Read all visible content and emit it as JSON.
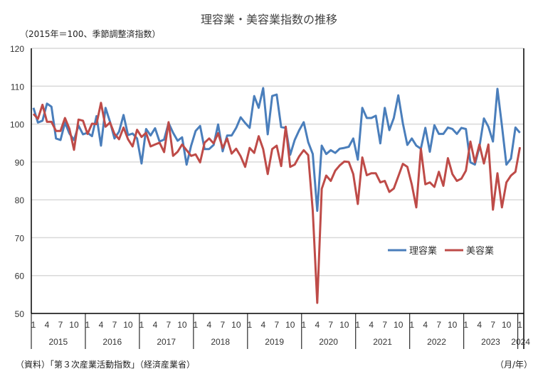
{
  "title": "理容業・美容業指数の推移",
  "subtitle": "（2015年＝100、季節調整済指数）",
  "source": "（資料）「第３次産業活動指数」（経済産業省）",
  "unit_label": "（月/年）",
  "chart_data": {
    "type": "line",
    "title": "理容業・美容業指数の推移",
    "ylim": [
      50,
      120
    ],
    "yticks": [
      50,
      60,
      70,
      80,
      90,
      100,
      110,
      120
    ],
    "grid": true,
    "legend_position": "center-right",
    "start": "2015-01",
    "end": "2024-01",
    "month_ticks": [
      "1",
      "4",
      "7",
      "10"
    ],
    "years": [
      "2015",
      "2016",
      "2017",
      "2018",
      "2019",
      "2020",
      "2021",
      "2022",
      "2023",
      "2024"
    ],
    "series": [
      {
        "name": "理容業",
        "color": "#4a7ebb",
        "values": [
          104.3,
          100.4,
          100.9,
          105.4,
          104.6,
          96.2,
          95.8,
          100.4,
          97.5,
          95.8,
          99.6,
          97.3,
          97.7,
          96.8,
          102.1,
          94.3,
          104.3,
          100.6,
          96.2,
          98.0,
          102.4,
          97.1,
          97.5,
          96.2,
          89.6,
          98.7,
          97.0,
          98.9,
          95.4,
          95.9,
          100.3,
          97.7,
          95.6,
          96.5,
          89.3,
          94.3,
          98.2,
          99.5,
          93.4,
          93.4,
          94.5,
          99.9,
          92.8,
          97.0,
          97.0,
          99.0,
          101.8,
          100.3,
          99.0,
          107.4,
          104.3,
          109.5,
          97.3,
          107.4,
          107.8,
          99.2,
          99.0,
          91.9,
          95.8,
          98.4,
          100.5,
          95.2,
          92.1,
          77.1,
          94.3,
          92.1,
          93.1,
          92.4,
          93.5,
          93.7,
          94.0,
          96.2,
          90.6,
          104.3,
          101.6,
          101.6,
          102.2,
          94.9,
          104.3,
          98.4,
          101.6,
          107.6,
          100.2,
          94.5,
          96.2,
          94.3,
          93.5,
          99.0,
          92.7,
          99.7,
          97.4,
          97.4,
          99.1,
          98.7,
          97.4,
          99.0,
          98.7,
          89.9,
          89.3,
          94.0,
          101.5,
          99.3,
          95.4,
          109.3,
          99.6,
          89.3,
          90.9,
          99.1,
          97.7
        ]
      },
      {
        "name": "美容業",
        "color": "#be4b48",
        "values": [
          102.7,
          101.4,
          105.1,
          100.6,
          100.6,
          98.2,
          98.2,
          101.6,
          98.7,
          93.2,
          101.2,
          100.9,
          97.4,
          100.1,
          100.0,
          105.6,
          99.3,
          100.4,
          97.4,
          96.0,
          99.1,
          96.0,
          94.1,
          98.5,
          96.6,
          97.7,
          94.1,
          94.6,
          95.1,
          92.6,
          100.5,
          91.6,
          92.7,
          94.6,
          93.1,
          91.6,
          92.0,
          89.9,
          95.1,
          96.2,
          94.9,
          97.6,
          93.7,
          96.2,
          92.2,
          93.5,
          91.5,
          88.7,
          93.7,
          92.4,
          96.8,
          93.4,
          86.8,
          93.4,
          94.3,
          88.9,
          99.3,
          88.7,
          89.3,
          91.5,
          93.1,
          91.8,
          77.1,
          52.8,
          82.9,
          86.4,
          85.0,
          87.7,
          89.1,
          90.1,
          90.0,
          86.8,
          78.9,
          91.2,
          86.5,
          87.0,
          87.0,
          84.6,
          85.0,
          82.1,
          83.0,
          86.2,
          89.5,
          88.7,
          84.0,
          78.0,
          93.5,
          84.1,
          84.6,
          83.4,
          87.4,
          83.7,
          91.0,
          86.8,
          85.0,
          85.6,
          87.7,
          95.4,
          89.9,
          94.6,
          89.6,
          94.6,
          77.4,
          87.0,
          78.0,
          84.6,
          86.4,
          87.4,
          93.9
        ]
      }
    ]
  }
}
